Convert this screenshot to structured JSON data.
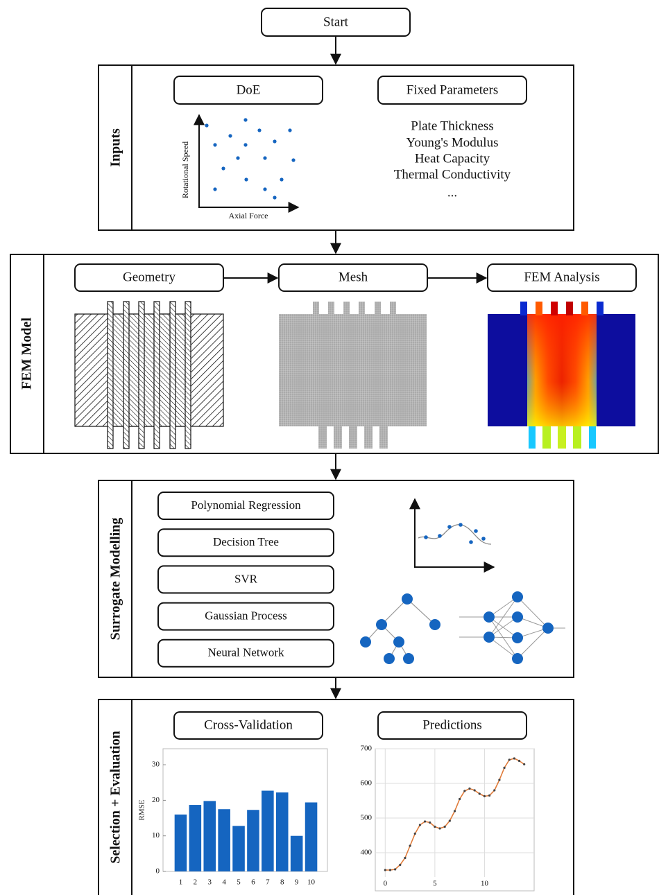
{
  "start": "Start",
  "inputs": {
    "label": "Inputs",
    "doe": {
      "title": "DoE",
      "x_label": "Axial Force",
      "y_label": "Rotational Speed"
    },
    "fixed_parameters": {
      "title": "Fixed Parameters",
      "items": [
        "Plate Thickness",
        "Young's Modulus",
        "Heat Capacity",
        "Thermal Conductivity",
        "..."
      ]
    }
  },
  "fem_model": {
    "label": "FEM Model",
    "steps": [
      "Geometry",
      "Mesh",
      "FEM Analysis"
    ]
  },
  "surrogate_modelling": {
    "label": "Surrogate Modelling",
    "methods": [
      "Polynomial Regression",
      "Decision Tree",
      "SVR",
      "Gaussian Process",
      "Neural Network"
    ]
  },
  "selection_evaluation": {
    "label": "Selection + Evaluation",
    "steps": [
      "Cross-Validation",
      "Predictions"
    ]
  },
  "chart_data": [
    {
      "type": "bar",
      "y_label": "RMSE",
      "categories": [
        "1",
        "2",
        "3",
        "4",
        "5",
        "6",
        "7",
        "8",
        "9",
        "10"
      ],
      "values": [
        16,
        18.7,
        19.8,
        17.5,
        12.8,
        17.3,
        22.7,
        22.2,
        10,
        19.4
      ],
      "color": "#1565c0",
      "ylim": [
        0,
        34.5
      ],
      "yticks": [
        0,
        10,
        20,
        30
      ],
      "grid": false
    },
    {
      "type": "line",
      "x": [
        0,
        0.5,
        1,
        1.5,
        2,
        2.5,
        3,
        3.5,
        4,
        4.5,
        5,
        5.5,
        6,
        6.5,
        7,
        7.5,
        8,
        8.5,
        9,
        9.5,
        10,
        10.5,
        11,
        11.5,
        12,
        12.5,
        13,
        13.5,
        14
      ],
      "values": [
        350,
        350,
        352,
        365,
        385,
        420,
        455,
        480,
        490,
        487,
        475,
        470,
        475,
        492,
        520,
        555,
        578,
        585,
        580,
        570,
        563,
        565,
        580,
        610,
        645,
        668,
        672,
        665,
        655
      ],
      "color": "#e07b39",
      "marker_color": "#444444",
      "xlim": [
        -1,
        15
      ],
      "ylim": [
        290,
        700
      ],
      "xticks": [
        0,
        5,
        10
      ],
      "yticks": [
        400,
        500,
        600,
        700
      ],
      "grid": true
    }
  ]
}
